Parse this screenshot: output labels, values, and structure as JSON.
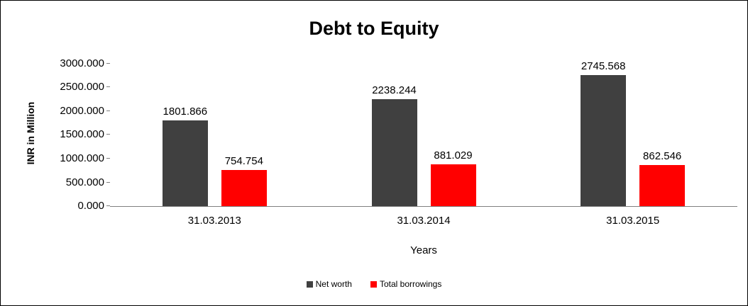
{
  "title": "Debt to Equity",
  "chart_data": {
    "type": "bar",
    "title": "Debt to Equity",
    "categories": [
      "31.03.2013",
      "31.03.2014",
      "31.03.2015"
    ],
    "series": [
      {
        "name": "Net worth",
        "color": "#404040",
        "values": [
          1801.866,
          2238.244,
          2745.568
        ],
        "labels": [
          "1801.866",
          "2238.244",
          "2745.568"
        ]
      },
      {
        "name": "Total borrowings",
        "color": "#ff0000",
        "values": [
          754.754,
          881.029,
          862.546
        ],
        "labels": [
          "754.754",
          "881.029",
          "862.546"
        ]
      }
    ],
    "xlabel": "Years",
    "ylabel": "INR in Million",
    "ylim": [
      0,
      3000
    ],
    "yticks": [
      "3000.000",
      "2500.000",
      "2000.000",
      "1500.000",
      "1000.000",
      "500.000",
      "0.000"
    ],
    "grid": false,
    "legend_position": "bottom"
  }
}
